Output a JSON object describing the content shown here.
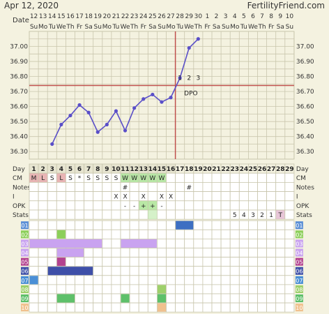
{
  "header": {
    "date": "Apr 12, 2020",
    "site": "FertilityFriend.com"
  },
  "colors": {
    "page_bg": "#f4f2e0",
    "grid_line": "#c9c6ad",
    "temp_line": "#5a4fc8",
    "cover_line": "#c0504d",
    "menses_red": "#e8b4b4",
    "cm_green": "#b7e6a5",
    "cm_light_green": "#ccefbd",
    "opk_green": "#b9e8a5"
  },
  "axis_labels": {
    "date": "Date",
    "day": "Day",
    "cm": "CM",
    "notes": "Notes",
    "i": "I",
    "opk": "OPK",
    "stats": "Stats"
  },
  "dates": [
    "12",
    "13",
    "14",
    "15",
    "16",
    "17",
    "18",
    "19",
    "20",
    "21",
    "22",
    "23",
    "24",
    "25",
    "26",
    "27",
    "28",
    "29",
    "30",
    "1",
    "2",
    "3",
    "4",
    "5",
    "6",
    "7",
    "8",
    "9",
    "10"
  ],
  "weekdays": [
    "Su",
    "Mo",
    "Tu",
    "We",
    "Th",
    "Fr",
    "Sa",
    "Su",
    "Mo",
    "Tu",
    "We",
    "Th",
    "Fr",
    "Sa",
    "Su",
    "Mo",
    "Tu",
    "We",
    "Th",
    "Fr",
    "Sa",
    "Su",
    "Mo",
    "Tu",
    "We",
    "Th",
    "Fr",
    "Sa",
    "Su"
  ],
  "temperature_ticks": [
    "37.00",
    "36.90",
    "36.80",
    "36.70",
    "36.60",
    "36.50",
    "36.40",
    "36.30"
  ],
  "chart_data": {
    "type": "line",
    "x": [
      3,
      4,
      5,
      6,
      7,
      8,
      9,
      10,
      11,
      12,
      13,
      14,
      15,
      16,
      17,
      18,
      19
    ],
    "y": [
      36.35,
      36.48,
      36.54,
      36.61,
      36.56,
      36.43,
      36.48,
      36.57,
      36.44,
      36.59,
      36.65,
      36.68,
      36.63,
      36.66,
      36.79,
      36.99,
      37.05
    ],
    "ylim": [
      36.25,
      37.1
    ],
    "coverline": 36.74,
    "ovulation_day": 16,
    "dpo_label": "DPO",
    "dpo_numbers": [
      "1",
      "2",
      "3"
    ],
    "ylabel": "",
    "xlabel": ""
  },
  "days": [
    "1",
    "2",
    "3",
    "4",
    "5",
    "6",
    "7",
    "8",
    "9",
    "10",
    "11",
    "12",
    "13",
    "14",
    "15",
    "16",
    "17",
    "18",
    "19",
    "20",
    "21",
    "22",
    "23",
    "24",
    "25",
    "26",
    "27",
    "28",
    "29"
  ],
  "cm": [
    "M",
    "L",
    "S",
    "L",
    "S",
    "*",
    "S",
    "S",
    "S",
    "S",
    "W",
    "W",
    "W",
    "W",
    "W",
    "",
    "",
    "",
    "",
    "",
    "",
    "",
    "",
    "",
    "",
    "",
    "",
    "",
    ""
  ],
  "notes": [
    "",
    "",
    "",
    "",
    "",
    "",
    "",
    "",
    "",
    "",
    "#",
    "",
    "",
    "",
    "",
    "",
    "",
    "#",
    "",
    "",
    "",
    "",
    "",
    "",
    "",
    "",
    "",
    "",
    ""
  ],
  "intercourse": [
    "",
    "",
    "",
    "",
    "",
    "",
    "",
    "",
    "",
    "X",
    "X",
    "",
    "X",
    "",
    "X",
    "X",
    "",
    "",
    "",
    "",
    "",
    "",
    "",
    "",
    "",
    "",
    "",
    "",
    ""
  ],
  "opk": [
    "",
    "",
    "",
    "",
    "",
    "",
    "",
    "",
    "",
    "",
    "-",
    "-",
    "+",
    "+",
    "-",
    "",
    "",
    "",
    "",
    "",
    "",
    "",
    "",
    "",
    "",
    "",
    "",
    "",
    ""
  ],
  "stats": [
    "",
    "",
    "",
    "",
    "",
    "",
    "",
    "",
    "",
    "",
    "",
    "",
    "",
    "",
    "",
    "",
    "",
    "",
    "",
    "",
    "",
    "",
    "5",
    "4",
    "3",
    "2",
    "1",
    "T",
    ""
  ],
  "custom_rows": [
    "01",
    "02",
    "03",
    "04",
    "05",
    "06",
    "07",
    "08",
    "09",
    "10"
  ]
}
